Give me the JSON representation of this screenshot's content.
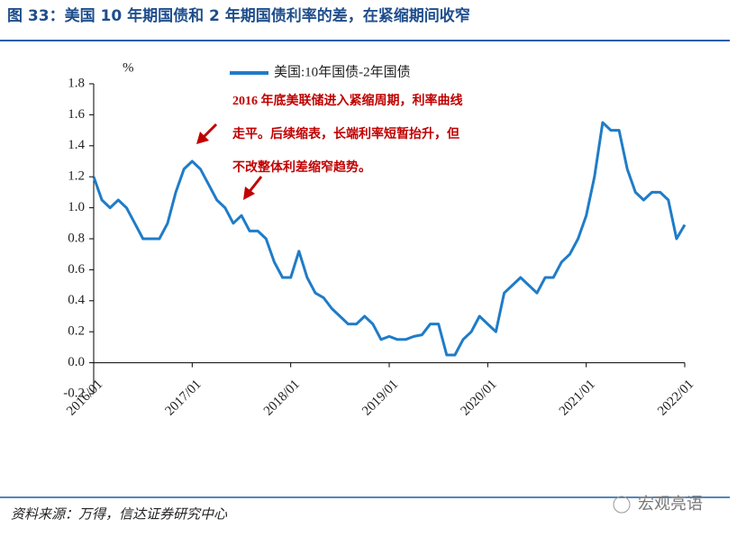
{
  "chart_data": {
    "type": "line",
    "title": "图 33：美国 10 年期国债和 2 年期国债利率的差，在紧缩期间收窄",
    "y_unit": "%",
    "annotation": [
      "2016 年底美联储进入紧缩周期，利率曲线",
      "走平。后续缩表，长端利率短暂抬升，但",
      "不改整体利差缩窄趋势。"
    ],
    "source": "资料来源：万得，信达证券研究中心",
    "watermark": "宏观亮语",
    "x": [
      "2016/01",
      "2016/02",
      "2016/03",
      "2016/04",
      "2016/05",
      "2016/06",
      "2016/07",
      "2016/08",
      "2016/09",
      "2016/10",
      "2016/11",
      "2016/12",
      "2017/01",
      "2017/02",
      "2017/03",
      "2017/04",
      "2017/05",
      "2017/06",
      "2017/07",
      "2017/08",
      "2017/09",
      "2017/10",
      "2017/11",
      "2017/12",
      "2018/01",
      "2018/02",
      "2018/03",
      "2018/04",
      "2018/05",
      "2018/06",
      "2018/07",
      "2018/08",
      "2018/09",
      "2018/10",
      "2018/11",
      "2018/12",
      "2019/01",
      "2019/02",
      "2019/03",
      "2019/04",
      "2019/05",
      "2019/06",
      "2019/07",
      "2019/08",
      "2019/09",
      "2019/10",
      "2019/11",
      "2019/12",
      "2020/01",
      "2020/02",
      "2020/03",
      "2020/04",
      "2020/05",
      "2020/06",
      "2020/07",
      "2020/08",
      "2020/09",
      "2020/10",
      "2020/11",
      "2020/12",
      "2021/01",
      "2021/02",
      "2021/03",
      "2021/04",
      "2021/05",
      "2021/06",
      "2021/07",
      "2021/08",
      "2021/09",
      "2021/10",
      "2021/11",
      "2021/12",
      "2022/01"
    ],
    "series": [
      {
        "name": "美国:10年国债-2年国债",
        "color": "#1f7cc8",
        "values": [
          1.2,
          1.05,
          1.0,
          1.05,
          1.0,
          0.9,
          0.8,
          0.8,
          0.8,
          0.9,
          1.1,
          1.25,
          1.3,
          1.25,
          1.15,
          1.05,
          1.0,
          0.9,
          0.95,
          0.85,
          0.85,
          0.8,
          0.65,
          0.55,
          0.55,
          0.72,
          0.55,
          0.45,
          0.42,
          0.35,
          0.3,
          0.25,
          0.25,
          0.3,
          0.25,
          0.15,
          0.17,
          0.15,
          0.15,
          0.17,
          0.18,
          0.25,
          0.25,
          0.05,
          0.05,
          0.15,
          0.2,
          0.3,
          0.25,
          0.2,
          0.45,
          0.5,
          0.55,
          0.5,
          0.45,
          0.55,
          0.55,
          0.65,
          0.7,
          0.8,
          0.95,
          1.2,
          1.55,
          1.5,
          1.5,
          1.25,
          1.1,
          1.05,
          1.1,
          1.1,
          1.05,
          0.8,
          0.89
        ]
      }
    ],
    "xticks": [
      "2016/01",
      "2017/01",
      "2018/01",
      "2019/01",
      "2020/01",
      "2021/01",
      "2022/01"
    ],
    "ylim": [
      -0.2,
      1.8
    ],
    "yticks": [
      -0.2,
      {
        "value": 0,
        "label": "0.0"
      },
      0.2,
      0.4,
      0.6,
      0.8,
      {
        "value": 1,
        "label": "1.0"
      },
      1.2,
      1.4,
      1.6,
      1.8
    ],
    "grid": false
  }
}
